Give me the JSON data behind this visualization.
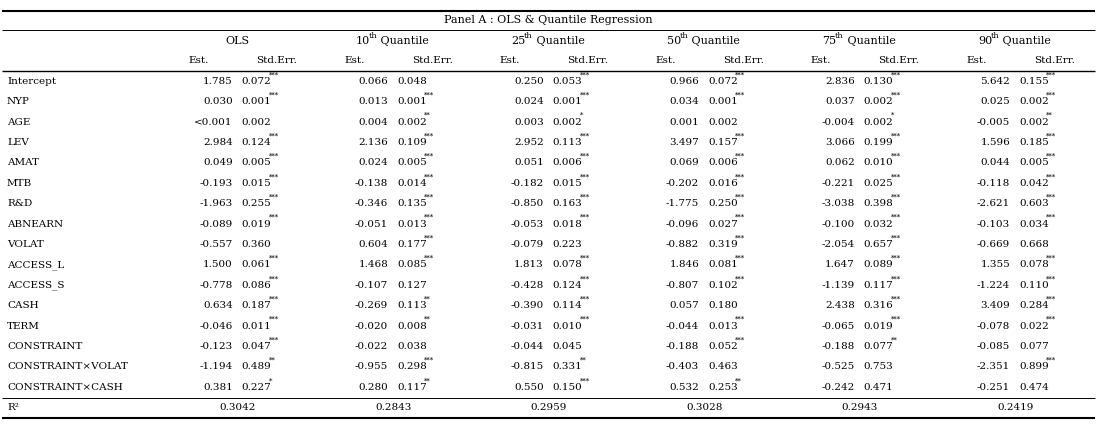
{
  "panel_label": "Panel A : OLS & Quantile Regression",
  "col_groups": [
    {
      "base": "OLS",
      "sup": "",
      "cols": [
        0,
        1
      ]
    },
    {
      "base": "10",
      "sup": "th",
      "cols": [
        2,
        3
      ]
    },
    {
      "base": "25",
      "sup": "th",
      "cols": [
        4,
        5
      ]
    },
    {
      "base": "50",
      "sup": "th",
      "cols": [
        6,
        7
      ]
    },
    {
      "base": "75",
      "sup": "th",
      "cols": [
        8,
        9
      ]
    },
    {
      "base": "90",
      "sup": "th",
      "cols": [
        10,
        11
      ]
    }
  ],
  "sub_headers": [
    "Est.",
    "Std.Err.",
    "Est.",
    "Std.Err.",
    "Est.",
    "Std.Err.",
    "Est.",
    "Std.Err.",
    "Est.",
    "Std.Err.",
    "Est.",
    "Std.Err."
  ],
  "row_labels": [
    "Intercept",
    "NYP",
    "AGE",
    "LEV",
    "AMAT",
    "MTB",
    "R&D",
    "ABNEARN",
    "VOLAT",
    "ACCESS_L",
    "ACCESS_S",
    "CASH",
    "TERM",
    "CONSTRAINT",
    "CONSTRAINT×VOLAT",
    "CONSTRAINT×CASH",
    "R²"
  ],
  "data": [
    [
      "1.785",
      "0.072***",
      "0.066",
      "0.048",
      "0.250",
      "0.053***",
      "0.966",
      "0.072***",
      "2.836",
      "0.130***",
      "5.642",
      "0.155***"
    ],
    [
      "0.030",
      "0.001***",
      "0.013",
      "0.001***",
      "0.024",
      "0.001***",
      "0.034",
      "0.001***",
      "0.037",
      "0.002***",
      "0.025",
      "0.002***"
    ],
    [
      "<0.001",
      "0.002",
      "0.004",
      "0.002**",
      "0.003",
      "0.002*",
      "0.001",
      "0.002",
      "-0.004",
      "0.002*",
      "-0.005",
      "0.002**"
    ],
    [
      "2.984",
      "0.124***",
      "2.136",
      "0.109***",
      "2.952",
      "0.113***",
      "3.497",
      "0.157***",
      "3.066",
      "0.199***",
      "1.596",
      "0.185***"
    ],
    [
      "0.049",
      "0.005***",
      "0.024",
      "0.005***",
      "0.051",
      "0.006***",
      "0.069",
      "0.006***",
      "0.062",
      "0.010***",
      "0.044",
      "0.005***"
    ],
    [
      "-0.193",
      "0.015***",
      "-0.138",
      "0.014***",
      "-0.182",
      "0.015***",
      "-0.202",
      "0.016***",
      "-0.221",
      "0.025***",
      "-0.118",
      "0.042***"
    ],
    [
      "-1.963",
      "0.255***",
      "-0.346",
      "0.135***",
      "-0.850",
      "0.163***",
      "-1.775",
      "0.250***",
      "-3.038",
      "0.398***",
      "-2.621",
      "0.603***"
    ],
    [
      "-0.089",
      "0.019***",
      "-0.051",
      "0.013***",
      "-0.053",
      "0.018***",
      "-0.096",
      "0.027***",
      "-0.100",
      "0.032***",
      "-0.103",
      "0.034***"
    ],
    [
      "-0.557",
      "0.360",
      "0.604",
      "0.177***",
      "-0.079",
      "0.223",
      "-0.882",
      "0.319***",
      "-2.054",
      "0.657***",
      "-0.669",
      "0.668"
    ],
    [
      "1.500",
      "0.061***",
      "1.468",
      "0.085***",
      "1.813",
      "0.078***",
      "1.846",
      "0.081***",
      "1.647",
      "0.089***",
      "1.355",
      "0.078***"
    ],
    [
      "-0.778",
      "0.086***",
      "-0.107",
      "0.127",
      "-0.428",
      "0.124***",
      "-0.807",
      "0.102***",
      "-1.139",
      "0.117***",
      "-1.224",
      "0.110***"
    ],
    [
      "0.634",
      "0.187***",
      "-0.269",
      "0.113**",
      "-0.390",
      "0.114***",
      "0.057",
      "0.180",
      "2.438",
      "0.316***",
      "3.409",
      "0.284***"
    ],
    [
      "-0.046",
      "0.011***",
      "-0.020",
      "0.008**",
      "-0.031",
      "0.010***",
      "-0.044",
      "0.013***",
      "-0.065",
      "0.019***",
      "-0.078",
      "0.022***"
    ],
    [
      "-0.123",
      "0.047***",
      "-0.022",
      "0.038",
      "-0.044",
      "0.045",
      "-0.188",
      "0.052***",
      "-0.188",
      "0.077**",
      "-0.085",
      "0.077"
    ],
    [
      "-1.194",
      "0.489**",
      "-0.955",
      "0.298***",
      "-0.815",
      "0.331**",
      "-0.403",
      "0.463",
      "-0.525",
      "0.753",
      "-2.351",
      "0.899***"
    ],
    [
      "0.381",
      "0.227*",
      "0.280",
      "0.117**",
      "0.550",
      "0.150***",
      "0.532",
      "0.253**",
      "-0.242",
      "0.471",
      "-0.251",
      "0.474"
    ],
    [
      "",
      "0.3042",
      "",
      "0.2843",
      "",
      "0.2959",
      "",
      "0.3028",
      "",
      "0.2943",
      "",
      "0.2419"
    ]
  ],
  "bg_color": "#ffffff",
  "text_color": "#000000",
  "fs": 7.5,
  "fs_title": 8.0,
  "fs_header": 8.0
}
